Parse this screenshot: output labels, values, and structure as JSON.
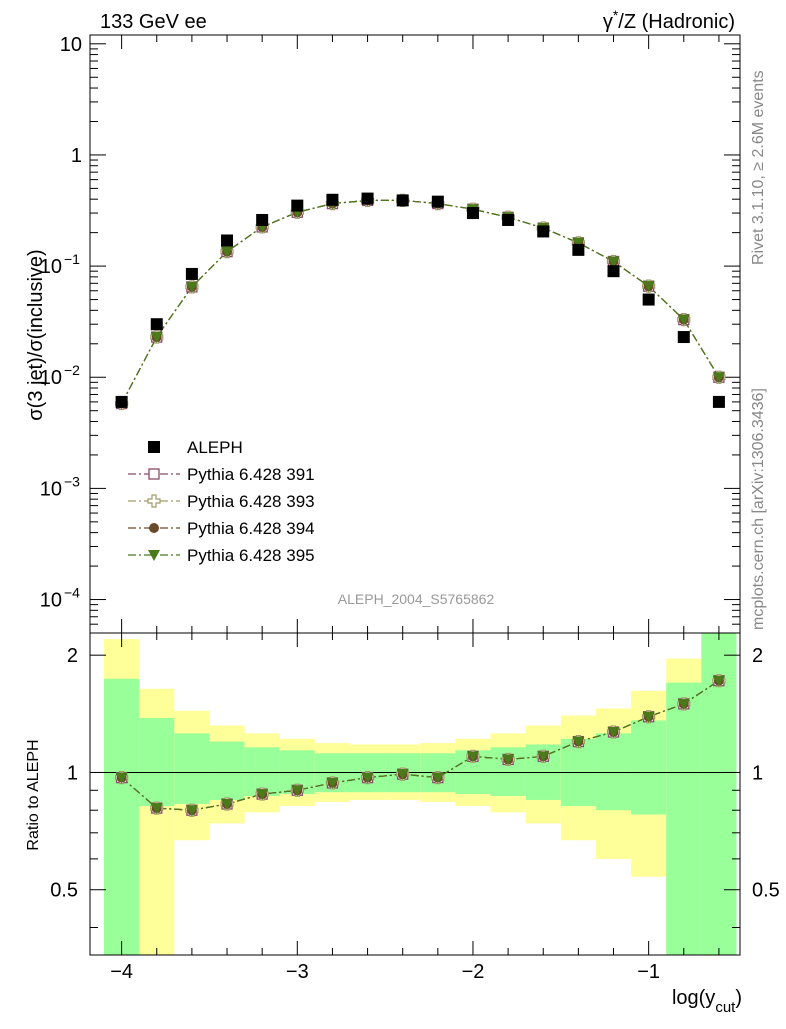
{
  "header": {
    "left_title": "133 GeV ee",
    "right_title_prefix": "γ",
    "right_title_sup": "*",
    "right_title_suffix": "/Z (Hadronic)"
  },
  "side_labels": {
    "rivet": "Rivet 3.1.10, ≥ 2.6M events",
    "mcplots": "mcplots.cern.ch [arXiv:1306.3436]"
  },
  "watermark": "ALEPH_2004_S5765862",
  "chart_data": [
    {
      "type": "scatter",
      "title": "133 GeV ee",
      "ylabel": "σ(3 jet)/σ(inclusive)",
      "xlabel_main": "log(y",
      "xlabel_sub": "cut",
      "xlabel_close": ")",
      "yscale": "log",
      "ylim": [
        5e-05,
        12
      ],
      "xlim": [
        -4.18,
        -0.48
      ],
      "x_ticks": [
        -4,
        -3,
        -2,
        -1
      ],
      "x_tick_labels": [
        "−4",
        "−3",
        "−2",
        "−1"
      ],
      "y_ticks": [
        {
          "label": "10",
          "sup": ""
        },
        {
          "label": "1",
          "sup": ""
        },
        {
          "label": "10",
          "sup": "−1"
        },
        {
          "label": "10",
          "sup": "−2"
        },
        {
          "label": "10",
          "sup": "−3"
        },
        {
          "label": "10",
          "sup": "−4"
        }
      ],
      "y_tick_values": [
        10,
        1,
        0.1,
        0.01,
        0.001,
        0.0001
      ],
      "x": [
        -4.0,
        -3.8,
        -3.6,
        -3.4,
        -3.2,
        -3.0,
        -2.8,
        -2.6,
        -2.4,
        -2.2,
        -2.0,
        -1.8,
        -1.6,
        -1.4,
        -1.2,
        -1.0,
        -0.8,
        -0.6
      ],
      "data": {
        "name": "ALEPH",
        "values": [
          0.006,
          0.03,
          0.085,
          0.17,
          0.26,
          0.35,
          0.395,
          0.405,
          0.39,
          0.38,
          0.3,
          0.26,
          0.205,
          0.14,
          0.09,
          0.05,
          0.023,
          0.006
        ]
      },
      "series": [
        {
          "name": "Pythia 6.428 391",
          "color": "#8b4a6b",
          "marker": "open-square",
          "dash": "8,3,2,3"
        },
        {
          "name": "Pythia 6.428 393",
          "color": "#a09a6a",
          "marker": "open-cross",
          "dash": "8,3,2,3"
        },
        {
          "name": "Pythia 6.428 394",
          "color": "#6b4a2a",
          "marker": "circle",
          "dash": "8,3,2,3"
        },
        {
          "name": "Pythia 6.428 395",
          "color": "#4a7a1a",
          "marker": "triangle-down",
          "dash": "8,3,2,3"
        }
      ],
      "mc_values": [
        0.0058,
        0.023,
        0.065,
        0.135,
        0.225,
        0.305,
        0.365,
        0.39,
        0.39,
        0.365,
        0.325,
        0.275,
        0.22,
        0.162,
        0.11,
        0.066,
        0.033,
        0.01
      ],
      "legend": {
        "data_label": "ALEPH",
        "placement": "middle-left"
      }
    },
    {
      "type": "scatter",
      "ylabel": "Ratio to ALEPH",
      "ylim": [
        0.34,
        2.28
      ],
      "y_ticks": [
        2,
        1,
        0.5
      ],
      "y_tick_labels": [
        "2",
        "1",
        "0.5"
      ],
      "x": [
        -4.0,
        -3.8,
        -3.6,
        -3.4,
        -3.2,
        -3.0,
        -2.8,
        -2.6,
        -2.4,
        -2.2,
        -2.0,
        -1.8,
        -1.6,
        -1.4,
        -1.2,
        -1.0,
        -0.8,
        -0.6
      ],
      "ratio_values": [
        0.97,
        0.81,
        0.8,
        0.83,
        0.88,
        0.9,
        0.94,
        0.97,
        0.99,
        0.97,
        1.1,
        1.08,
        1.1,
        1.2,
        1.27,
        1.39,
        1.5,
        1.72
      ],
      "band_inner_lo": [
        0.34,
        0.82,
        0.83,
        0.85,
        0.87,
        0.88,
        0.89,
        0.89,
        0.89,
        0.89,
        0.88,
        0.87,
        0.85,
        0.82,
        0.8,
        0.78,
        0.34,
        0.34
      ],
      "band_inner_hi": [
        1.74,
        1.38,
        1.26,
        1.2,
        1.16,
        1.14,
        1.12,
        1.12,
        1.12,
        1.12,
        1.14,
        1.16,
        1.18,
        1.22,
        1.26,
        1.36,
        1.7,
        2.28
      ],
      "band_outer_lo": [
        0.34,
        0.34,
        0.67,
        0.74,
        0.79,
        0.82,
        0.84,
        0.85,
        0.85,
        0.84,
        0.82,
        0.79,
        0.74,
        0.67,
        0.6,
        0.54,
        0.34,
        0.34
      ],
      "band_outer_hi": [
        2.2,
        1.64,
        1.44,
        1.32,
        1.26,
        1.22,
        1.19,
        1.18,
        1.18,
        1.19,
        1.22,
        1.26,
        1.32,
        1.4,
        1.46,
        1.62,
        1.96,
        2.28
      ]
    }
  ]
}
